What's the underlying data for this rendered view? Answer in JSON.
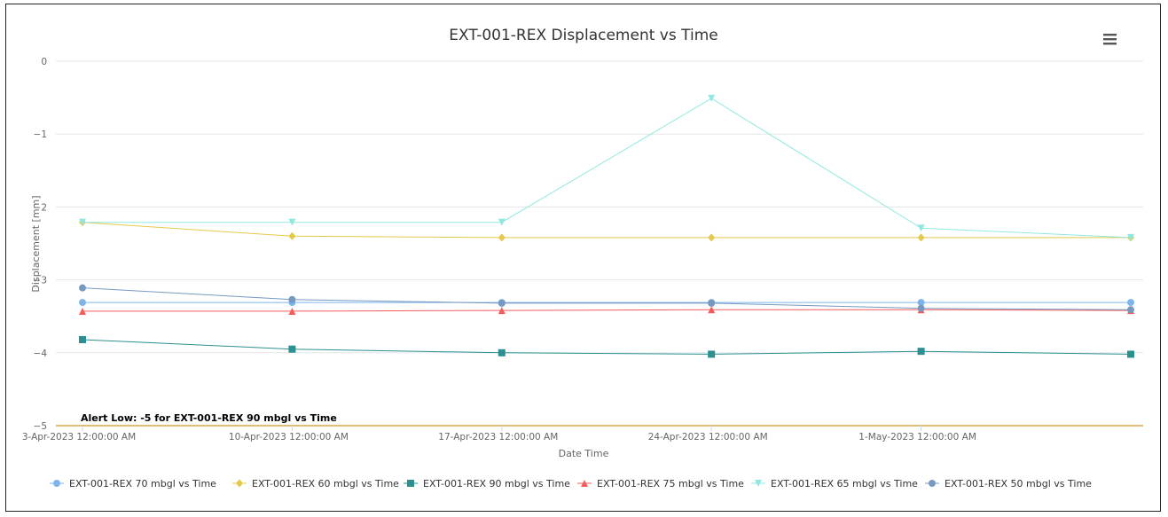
{
  "chart_data": {
    "type": "line",
    "title": "EXT-001-REX Displacement vs Time",
    "xlabel": "Date Time",
    "ylabel": "Displacement [mm]",
    "ylim": [
      -5,
      0
    ],
    "yticks": [
      0,
      -1,
      -2,
      -3,
      -4,
      -5
    ],
    "x": [
      "2023-04-03",
      "2023-04-10",
      "2023-04-17",
      "2023-04-24",
      "2023-05-01",
      "2023-05-08"
    ],
    "xticks": [
      {
        "date": "2023-04-03",
        "label": "3-Apr-2023 12:00:00 AM"
      },
      {
        "date": "2023-04-10",
        "label": "10-Apr-2023 12:00:00 AM"
      },
      {
        "date": "2023-04-17",
        "label": "17-Apr-2023 12:00:00 AM"
      },
      {
        "date": "2023-04-24",
        "label": "24-Apr-2023 12:00:00 AM"
      },
      {
        "date": "2023-05-01",
        "label": "1-May-2023 12:00:00 AM"
      }
    ],
    "grid": true,
    "legend_position": "bottom",
    "series": [
      {
        "name": "EXT-001-REX 70 mbgl vs Time",
        "color": "#7cb5ec",
        "marker": "circle",
        "values": [
          -3.31,
          -3.31,
          -3.31,
          -3.31,
          -3.31,
          -3.31
        ]
      },
      {
        "name": "EXT-001-REX 60 mbgl vs Time",
        "color": "#e4c84a",
        "marker": "diamond",
        "values": [
          -2.21,
          -2.4,
          -2.42,
          -2.42,
          -2.42,
          -2.42
        ]
      },
      {
        "name": "EXT-001-REX 90 mbgl vs Time",
        "color": "#2b908f",
        "marker": "square",
        "values": [
          -3.82,
          -3.95,
          -4.0,
          -4.02,
          -3.98,
          -4.02
        ]
      },
      {
        "name": "EXT-001-REX 75 mbgl vs Time",
        "color": "#f45b5b",
        "marker": "triangle",
        "values": [
          -3.43,
          -3.43,
          -3.42,
          -3.41,
          -3.41,
          -3.42
        ]
      },
      {
        "name": "EXT-001-REX 65 mbgl vs Time",
        "color": "#91e8e1",
        "marker": "triangle-down",
        "values": [
          -2.21,
          -2.21,
          -2.21,
          -0.51,
          -2.29,
          -2.42
        ]
      },
      {
        "name": "EXT-001-REX 50 mbgl vs Time",
        "color": "#7798bf",
        "marker": "circle",
        "values": [
          -3.11,
          -3.27,
          -3.32,
          -3.32,
          -3.39,
          -3.41
        ]
      }
    ],
    "plot_lines": [
      {
        "value": -5,
        "color": "#f0a30a",
        "label": "Alert Low: -5 for EXT-001-REX 90 mbgl vs Time"
      }
    ]
  },
  "menu_icon": "hamburger-menu-icon"
}
